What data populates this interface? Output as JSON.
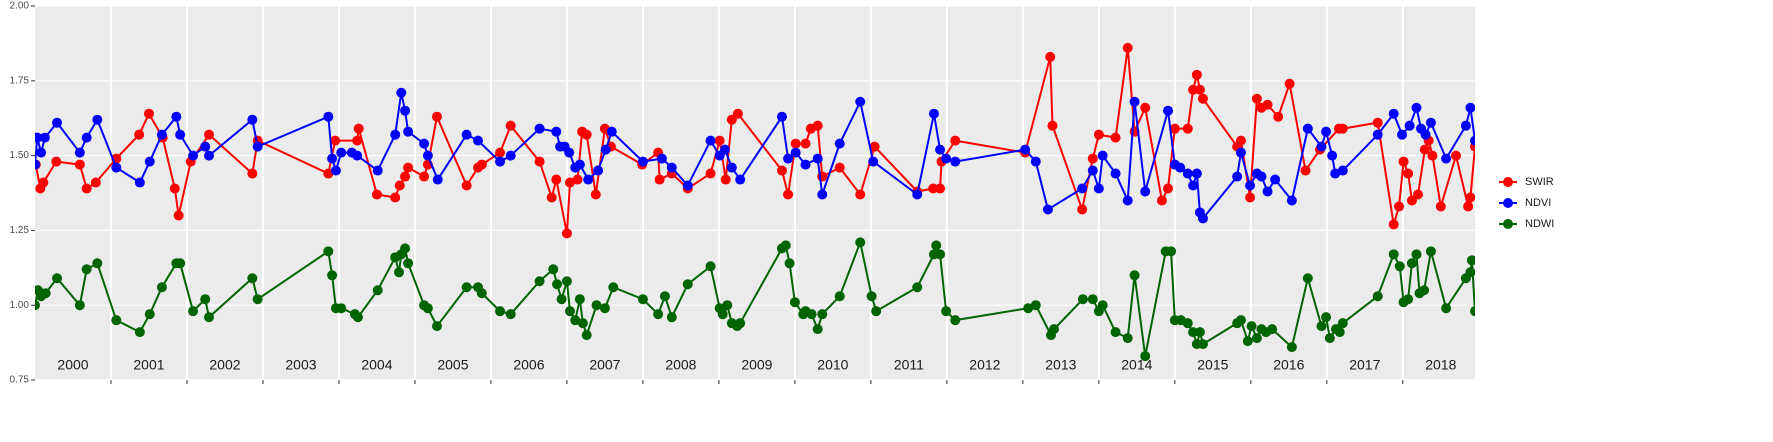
{
  "chart_data": {
    "type": "line",
    "xlim": [
      2000,
      2018.95
    ],
    "ylim": [
      0.75,
      2.0
    ],
    "yticks": [
      {
        "value": 0.75,
        "label": "0.75"
      },
      {
        "value": 1.0,
        "label": "1.00"
      },
      1.25,
      {
        "value": 1.5,
        "label": "1.50"
      },
      1.75,
      {
        "value": 2.0,
        "label": "2.00"
      }
    ],
    "xgrid": [
      2001,
      2002,
      2003,
      2004,
      2005,
      2006,
      2007,
      2008,
      2009,
      2010,
      2011,
      2012,
      2013,
      2014,
      2015,
      2016,
      2017,
      2018
    ],
    "year_labels": [
      {
        "value": 2000.5,
        "label": "2000"
      },
      {
        "value": 2001.5,
        "label": "2001"
      },
      {
        "value": 2002.5,
        "label": "2002"
      },
      {
        "value": 2003.5,
        "label": "2003"
      },
      {
        "value": 2004.5,
        "label": "2004"
      },
      {
        "value": 2005.5,
        "label": "2005"
      },
      {
        "value": 2006.5,
        "label": "2006"
      },
      {
        "value": 2007.5,
        "label": "2007"
      },
      {
        "value": 2008.5,
        "label": "2008"
      },
      {
        "value": 2009.5,
        "label": "2009"
      },
      {
        "value": 2010.5,
        "label": "2010"
      },
      {
        "value": 2011.5,
        "label": "2011"
      },
      {
        "value": 2012.5,
        "label": "2012"
      },
      {
        "value": 2013.5,
        "label": "2013"
      },
      {
        "value": 2014.5,
        "label": "2014"
      },
      {
        "value": 2015.5,
        "label": "2015"
      },
      {
        "value": 2016.5,
        "label": "2016"
      },
      {
        "value": 2017.5,
        "label": "2017"
      },
      {
        "value": 2018.5,
        "label": "2018"
      }
    ],
    "grid": true,
    "legend": "right",
    "series": [
      {
        "name": "SWIR",
        "color": "#ff0000",
        "x": [
          2000.01,
          2000.07,
          2000.11,
          2000.28,
          2000.59,
          2000.68,
          2000.8,
          2001.07,
          2001.37,
          2001.5,
          2001.68,
          2001.84,
          2001.89,
          2002.05,
          2002.29,
          2002.86,
          2002.93,
          2003.86,
          2003.95,
          2004.24,
          2004.26,
          2004.5,
          2004.74,
          2004.8,
          2004.87,
          2004.91,
          2005.12,
          2005.17,
          2005.29,
          2005.68,
          2005.83,
          2005.88,
          2006.12,
          2006.26,
          2006.64,
          2006.8,
          2006.86,
          2007.0,
          2007.04,
          2007.14,
          2007.2,
          2007.26,
          2007.38,
          2007.5,
          2007.58,
          2007.99,
          2008.2,
          2008.22,
          2008.38,
          2008.59,
          2008.89,
          2009.01,
          2009.09,
          2009.17,
          2009.25,
          2009.83,
          2009.91,
          2010.01,
          2010.14,
          2010.21,
          2010.3,
          2010.36,
          2010.59,
          2010.86,
          2011.05,
          2011.61,
          2011.82,
          2011.91,
          2011.93,
          2012.11,
          2013.03,
          2013.36,
          2013.39,
          2013.78,
          2013.92,
          2014.0,
          2014.22,
          2014.38,
          2014.47,
          2014.61,
          2014.83,
          2014.91,
          2015.0,
          2015.17,
          2015.24,
          2015.29,
          2015.33,
          2015.37,
          2015.82,
          2015.87,
          2015.99,
          2016.08,
          2016.14,
          2016.22,
          2016.36,
          2016.51,
          2016.72,
          2016.91,
          2017.16,
          2017.21,
          2017.67,
          2017.88,
          2017.95,
          2018.01,
          2018.07,
          2018.12,
          2018.2,
          2018.29,
          2018.34,
          2018.39,
          2018.5,
          2018.7,
          2018.86,
          2018.89,
          2018.95
        ],
        "values": [
          1.47,
          1.39,
          1.41,
          1.48,
          1.47,
          1.39,
          1.41,
          1.49,
          1.57,
          1.64,
          1.56,
          1.39,
          1.3,
          1.48,
          1.57,
          1.44,
          1.55,
          1.44,
          1.55,
          1.55,
          1.59,
          1.37,
          1.36,
          1.4,
          1.43,
          1.46,
          1.43,
          1.47,
          1.63,
          1.4,
          1.46,
          1.47,
          1.51,
          1.6,
          1.48,
          1.36,
          1.42,
          1.24,
          1.41,
          1.42,
          1.58,
          1.57,
          1.37,
          1.59,
          1.53,
          1.47,
          1.51,
          1.42,
          1.44,
          1.39,
          1.44,
          1.55,
          1.42,
          1.62,
          1.64,
          1.45,
          1.37,
          1.54,
          1.54,
          1.59,
          1.6,
          1.43,
          1.46,
          1.37,
          1.53,
          1.38,
          1.39,
          1.39,
          1.48,
          1.55,
          1.51,
          1.83,
          1.6,
          1.32,
          1.49,
          1.57,
          1.56,
          1.86,
          1.58,
          1.66,
          1.35,
          1.39,
          1.59,
          1.59,
          1.72,
          1.77,
          1.72,
          1.69,
          1.53,
          1.55,
          1.36,
          1.69,
          1.66,
          1.67,
          1.63,
          1.74,
          1.45,
          1.52,
          1.59,
          1.59,
          1.61,
          1.27,
          1.33,
          1.48,
          1.44,
          1.35,
          1.37,
          1.52,
          1.55,
          1.5,
          1.33,
          1.5,
          1.33,
          1.36,
          1.53
        ]
      },
      {
        "name": "NDVI",
        "color": "#0000ff",
        "x": [
          2000.0,
          2000.03,
          2000.08,
          2000.13,
          2000.29,
          2000.59,
          2000.68,
          2000.82,
          2001.07,
          2001.38,
          2001.51,
          2001.67,
          2001.86,
          2001.91,
          2002.08,
          2002.24,
          2002.29,
          2002.86,
          2002.93,
          2003.86,
          2003.91,
          2003.96,
          2004.03,
          2004.17,
          2004.24,
          2004.51,
          2004.74,
          2004.82,
          2004.87,
          2004.91,
          2005.12,
          2005.17,
          2005.3,
          2005.68,
          2005.83,
          2006.12,
          2006.26,
          2006.64,
          2006.86,
          2006.91,
          2006.97,
          2007.03,
          2007.11,
          2007.17,
          2007.28,
          2007.41,
          2007.51,
          2007.59,
          2008.0,
          2008.25,
          2008.38,
          2008.59,
          2008.89,
          2009.01,
          2009.08,
          2009.17,
          2009.28,
          2009.83,
          2009.91,
          2010.01,
          2010.14,
          2010.3,
          2010.36,
          2010.59,
          2010.86,
          2011.03,
          2011.61,
          2011.83,
          2011.91,
          2011.99,
          2012.11,
          2013.03,
          2013.17,
          2013.33,
          2013.78,
          2013.92,
          2014.0,
          2014.05,
          2014.22,
          2014.38,
          2014.47,
          2014.61,
          2014.91,
          2015.0,
          2015.07,
          2015.17,
          2015.24,
          2015.29,
          2015.33,
          2015.37,
          2015.82,
          2015.87,
          2015.99,
          2016.08,
          2016.14,
          2016.22,
          2016.32,
          2016.54,
          2016.75,
          2016.93,
          2016.99,
          2017.07,
          2017.11,
          2017.21,
          2017.67,
          2017.88,
          2017.99,
          2018.09,
          2018.18,
          2018.24,
          2018.3,
          2018.37,
          2018.57,
          2018.83,
          2018.89,
          2018.95
        ],
        "values": [
          1.47,
          1.56,
          1.51,
          1.56,
          1.61,
          1.51,
          1.56,
          1.62,
          1.46,
          1.41,
          1.48,
          1.57,
          1.63,
          1.57,
          1.5,
          1.53,
          1.5,
          1.62,
          1.53,
          1.63,
          1.49,
          1.45,
          1.51,
          1.51,
          1.5,
          1.45,
          1.57,
          1.71,
          1.65,
          1.58,
          1.54,
          1.5,
          1.42,
          1.57,
          1.55,
          1.48,
          1.5,
          1.59,
          1.58,
          1.53,
          1.53,
          1.51,
          1.46,
          1.47,
          1.42,
          1.45,
          1.52,
          1.58,
          1.48,
          1.49,
          1.46,
          1.4,
          1.55,
          1.5,
          1.52,
          1.46,
          1.42,
          1.63,
          1.49,
          1.51,
          1.47,
          1.49,
          1.37,
          1.54,
          1.68,
          1.48,
          1.37,
          1.64,
          1.52,
          1.49,
          1.48,
          1.52,
          1.48,
          1.32,
          1.39,
          1.45,
          1.39,
          1.5,
          1.44,
          1.35,
          1.68,
          1.38,
          1.65,
          1.47,
          1.46,
          1.44,
          1.4,
          1.44,
          1.31,
          1.29,
          1.43,
          1.51,
          1.4,
          1.44,
          1.43,
          1.38,
          1.42,
          1.35,
          1.59,
          1.53,
          1.58,
          1.5,
          1.44,
          1.45,
          1.57,
          1.64,
          1.57,
          1.6,
          1.66,
          1.59,
          1.57,
          1.61,
          1.49,
          1.6,
          1.66,
          1.55
        ]
      },
      {
        "name": "NDWI",
        "color": "#006400",
        "x": [
          2000.0,
          2000.04,
          2000.08,
          2000.14,
          2000.29,
          2000.59,
          2000.68,
          2000.82,
          2001.07,
          2001.38,
          2001.51,
          2001.67,
          2001.86,
          2001.91,
          2002.08,
          2002.24,
          2002.29,
          2002.86,
          2002.93,
          2003.86,
          2003.91,
          2003.96,
          2004.03,
          2004.21,
          2004.25,
          2004.51,
          2004.74,
          2004.79,
          2004.82,
          2004.87,
          2004.91,
          2005.12,
          2005.17,
          2005.29,
          2005.68,
          2005.83,
          2005.88,
          2006.12,
          2006.26,
          2006.64,
          2006.82,
          2006.87,
          2006.93,
          2007.0,
          2007.04,
          2007.11,
          2007.17,
          2007.21,
          2007.26,
          2007.39,
          2007.5,
          2007.61,
          2008.0,
          2008.2,
          2008.29,
          2008.38,
          2008.59,
          2008.89,
          2009.01,
          2009.05,
          2009.11,
          2009.17,
          2009.24,
          2009.28,
          2009.83,
          2009.88,
          2009.93,
          2010.0,
          2010.11,
          2010.14,
          2010.22,
          2010.3,
          2010.36,
          2010.59,
          2010.86,
          2011.01,
          2011.07,
          2011.61,
          2011.83,
          2011.86,
          2011.91,
          2011.99,
          2012.11,
          2013.07,
          2013.17,
          2013.37,
          2013.41,
          2013.79,
          2013.92,
          2014.0,
          2014.05,
          2014.22,
          2014.38,
          2014.47,
          2014.61,
          2014.88,
          2014.95,
          2015.0,
          2015.08,
          2015.17,
          2015.24,
          2015.29,
          2015.33,
          2015.37,
          2015.82,
          2015.87,
          2015.96,
          2016.01,
          2016.08,
          2016.14,
          2016.2,
          2016.28,
          2016.54,
          2016.75,
          2016.93,
          2016.99,
          2017.04,
          2017.12,
          2017.17,
          2017.21,
          2017.67,
          2017.88,
          2017.96,
          2018.01,
          2018.07,
          2018.12,
          2018.18,
          2018.22,
          2018.28,
          2018.37,
          2018.57,
          2018.83,
          2018.89,
          2018.91,
          2018.95
        ],
        "values": [
          1.0,
          1.05,
          1.03,
          1.04,
          1.09,
          1.0,
          1.12,
          1.14,
          0.95,
          0.91,
          0.97,
          1.06,
          1.14,
          1.14,
          0.98,
          1.02,
          0.96,
          1.09,
          1.02,
          1.18,
          1.1,
          0.99,
          0.99,
          0.97,
          0.96,
          1.05,
          1.16,
          1.11,
          1.17,
          1.19,
          1.14,
          1.0,
          0.99,
          0.93,
          1.06,
          1.06,
          1.04,
          0.98,
          0.97,
          1.08,
          1.12,
          1.07,
          1.02,
          1.08,
          0.98,
          0.95,
          1.02,
          0.94,
          0.9,
          1.0,
          0.99,
          1.06,
          1.02,
          0.97,
          1.03,
          0.96,
          1.07,
          1.13,
          0.99,
          0.97,
          1.0,
          0.94,
          0.93,
          0.94,
          1.19,
          1.2,
          1.14,
          1.01,
          0.97,
          0.98,
          0.97,
          0.92,
          0.97,
          1.03,
          1.21,
          1.03,
          0.98,
          1.06,
          1.17,
          1.2,
          1.17,
          0.98,
          0.95,
          0.99,
          1.0,
          0.9,
          0.92,
          1.02,
          1.02,
          0.98,
          1.0,
          0.91,
          0.89,
          1.1,
          0.83,
          1.18,
          1.18,
          0.95,
          0.95,
          0.94,
          0.91,
          0.87,
          0.91,
          0.87,
          0.94,
          0.95,
          0.88,
          0.93,
          0.89,
          0.92,
          0.91,
          0.92,
          0.86,
          1.09,
          0.93,
          0.96,
          0.89,
          0.92,
          0.91,
          0.94,
          1.03,
          1.17,
          1.13,
          1.01,
          1.02,
          1.14,
          1.17,
          1.04,
          1.05,
          1.18,
          0.99,
          1.09,
          1.11,
          1.15,
          0.98
        ]
      }
    ]
  }
}
